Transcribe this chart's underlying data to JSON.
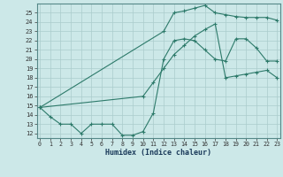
{
  "bg_color": "#cce8e8",
  "grid_color": "#aacccc",
  "line_color": "#2d7a6a",
  "xlabel": "Humidex (Indice chaleur)",
  "xlim": [
    -0.3,
    23.3
  ],
  "ylim": [
    11.5,
    26.0
  ],
  "yticks": [
    12,
    13,
    14,
    15,
    16,
    17,
    18,
    19,
    20,
    21,
    22,
    23,
    24,
    25
  ],
  "xticks": [
    0,
    1,
    2,
    3,
    4,
    5,
    6,
    7,
    8,
    9,
    10,
    11,
    12,
    13,
    14,
    15,
    16,
    17,
    18,
    19,
    20,
    21,
    22,
    23
  ],
  "curve1_x": [
    0,
    1,
    2,
    3,
    4,
    5,
    6,
    7,
    8,
    9,
    10,
    11,
    12,
    13,
    14,
    15,
    16,
    17,
    18,
    19,
    20,
    21,
    22,
    23
  ],
  "curve1_y": [
    14.8,
    13.8,
    13.0,
    13.0,
    12.0,
    13.0,
    13.0,
    13.0,
    11.8,
    11.8,
    12.2,
    14.2,
    20.0,
    22.0,
    22.2,
    22.0,
    21.0,
    20.0,
    19.8,
    22.2,
    22.2,
    21.2,
    19.8,
    19.8
  ],
  "curve2_x": [
    0,
    10,
    11,
    12,
    13,
    14,
    15,
    16,
    17,
    18,
    19,
    20,
    21,
    22,
    23
  ],
  "curve2_y": [
    14.8,
    16.0,
    17.5,
    19.0,
    20.5,
    21.5,
    22.5,
    23.2,
    23.8,
    18.0,
    18.2,
    18.4,
    18.6,
    18.8,
    18.0
  ],
  "curve3_x": [
    0,
    12,
    13,
    14,
    15,
    16,
    17,
    18,
    19,
    20,
    21,
    22,
    23
  ],
  "curve3_y": [
    14.8,
    23.0,
    25.0,
    25.2,
    25.5,
    25.8,
    25.0,
    24.8,
    24.6,
    24.5,
    24.5,
    24.5,
    24.2
  ]
}
